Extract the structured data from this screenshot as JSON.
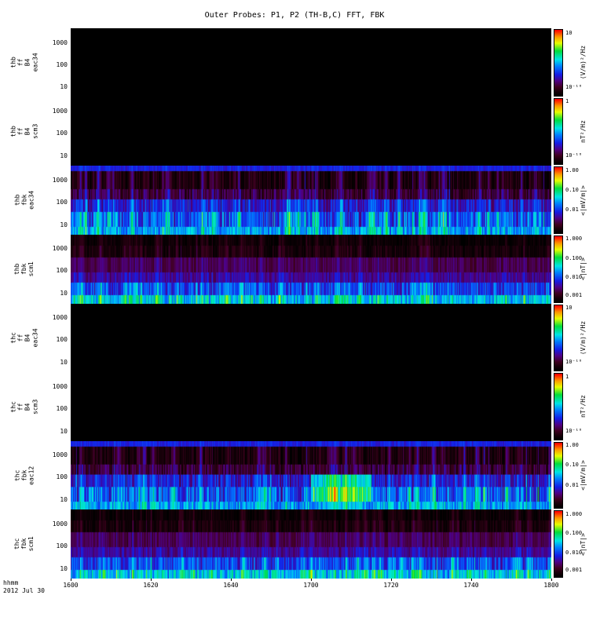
{
  "title": "Outer Probes: P1, P2 (TH-B,C) FFT, FBK",
  "footer": {
    "time_label": "hhmm",
    "date_label": "2012 Jul 30"
  },
  "colors": {
    "background": "#ffffff",
    "panel_background": "#000000",
    "axis": "#000000"
  },
  "chart_data": {
    "type": "heatmap",
    "title": "Outer Probes: P1, P2 (TH-B,C) FFT, FBK",
    "xlabel": "hhmm",
    "x_range": [
      "1600",
      "1800"
    ],
    "x_ticks": [
      "1600",
      "1620",
      "1640",
      "1700",
      "1720",
      "1740",
      "1800"
    ],
    "y_scale": "log",
    "y_ticks": [
      {
        "pos": 0.2,
        "label": "1000"
      },
      {
        "pos": 0.52,
        "label": "100"
      },
      {
        "pos": 0.85,
        "label": "10"
      }
    ],
    "row_profiles": {
      "efield": [
        {
          "frac": 0.09,
          "base": 0.3,
          "gain": 0.06,
          "noise": 0.04
        },
        {
          "frac": 0.26,
          "base": 0.0,
          "gain": 0.3,
          "noise": 0.05
        },
        {
          "frac": 0.14,
          "base": 0.1,
          "gain": 0.2,
          "noise": 0.09
        },
        {
          "frac": 0.19,
          "base": 0.24,
          "gain": 0.25,
          "noise": 0.1
        },
        {
          "frac": 0.21,
          "base": 0.3,
          "gain": 0.4,
          "noise": 0.13
        },
        {
          "frac": 0.11,
          "base": 0.42,
          "gain": 0.25,
          "noise": 0.11
        }
      ],
      "bfield": [
        {
          "frac": 0.17,
          "base": 0.0,
          "gain": 0.12,
          "noise": 0.03
        },
        {
          "frac": 0.17,
          "base": 0.02,
          "gain": 0.14,
          "noise": 0.04
        },
        {
          "frac": 0.21,
          "base": 0.15,
          "gain": 0.1,
          "noise": 0.05
        },
        {
          "frac": 0.15,
          "base": 0.21,
          "gain": 0.12,
          "noise": 0.06
        },
        {
          "frac": 0.18,
          "base": 0.3,
          "gain": 0.25,
          "noise": 0.11
        },
        {
          "frac": 0.12,
          "base": 0.45,
          "gain": 0.28,
          "noise": 0.12
        }
      ]
    },
    "panels": [
      {
        "id": "thb-ff-b4-eac34",
        "label_lines": [
          "thb",
          "ff",
          "B4",
          "eac34"
        ],
        "kind": "empty",
        "colorbar": {
          "unit": "(V/m)²/Hz",
          "ticks": [
            {
              "pos": 0.02,
              "label": "10"
            },
            {
              "pos": 0.9,
              "label": "10⁻¹⁰"
            }
          ]
        }
      },
      {
        "id": "thb-ff-b4-scm3",
        "label_lines": [
          "thb",
          "ff",
          "B4",
          "scm3"
        ],
        "kind": "empty",
        "colorbar": {
          "unit": "nT²/Hz",
          "ticks": [
            {
              "pos": 0.02,
              "label": "1"
            },
            {
              "pos": 0.9,
              "label": "10⁻¹⁰"
            }
          ]
        }
      },
      {
        "id": "thb-fbk-eac34",
        "label_lines": [
          "thb",
          "fbk",
          "eac34"
        ],
        "kind": "spectrogram",
        "profile": "efield",
        "seed": 101,
        "colorbar": {
          "unit": "<|mV/m|>",
          "ticks": [
            {
              "pos": 0.02,
              "label": "1.00"
            },
            {
              "pos": 0.34,
              "label": "0.10"
            },
            {
              "pos": 0.66,
              "label": "0.01"
            }
          ]
        }
      },
      {
        "id": "thb-fbk-scm1",
        "label_lines": [
          "thb",
          "fbk",
          "scm1"
        ],
        "kind": "spectrogram",
        "profile": "bfield",
        "seed": 202,
        "colorbar": {
          "unit": "<|nT|>",
          "ticks": [
            {
              "pos": 0.02,
              "label": "1.000"
            },
            {
              "pos": 0.33,
              "label": "0.100"
            },
            {
              "pos": 0.64,
              "label": "0.010"
            },
            {
              "pos": 0.93,
              "label": "0.001"
            }
          ]
        }
      },
      {
        "id": "thc-ff-b4-eac34",
        "label_lines": [
          "thc",
          "ff",
          "B4",
          "eac34"
        ],
        "kind": "empty",
        "colorbar": {
          "unit": "(V/m)²/Hz",
          "ticks": [
            {
              "pos": 0.02,
              "label": "10"
            },
            {
              "pos": 0.9,
              "label": "10⁻¹⁰"
            }
          ]
        }
      },
      {
        "id": "thc-ff-b4-scm3",
        "label_lines": [
          "thc",
          "ff",
          "B4",
          "scm3"
        ],
        "kind": "empty",
        "colorbar": {
          "unit": "nT²/Hz",
          "ticks": [
            {
              "pos": 0.02,
              "label": "1"
            },
            {
              "pos": 0.9,
              "label": "10⁻¹⁰"
            }
          ]
        }
      },
      {
        "id": "thc-fbk-eac12",
        "label_lines": [
          "thc",
          "fbk",
          "eac12"
        ],
        "kind": "spectrogram",
        "profile": "efield",
        "seed": 303,
        "hotspot": {
          "from": 0.5,
          "to": 0.625,
          "rows": [
            3,
            4
          ],
          "boost": 0.25
        },
        "colorbar": {
          "unit": "<|mV/m|>",
          "ticks": [
            {
              "pos": 0.02,
              "label": "1.00"
            },
            {
              "pos": 0.34,
              "label": "0.10"
            },
            {
              "pos": 0.66,
              "label": "0.01"
            }
          ]
        }
      },
      {
        "id": "thc-fbk-scm1",
        "label_lines": [
          "thc",
          "fbk",
          "scm1"
        ],
        "kind": "spectrogram",
        "profile": "bfield",
        "seed": 404,
        "colorbar": {
          "unit": "<|nT|>",
          "ticks": [
            {
              "pos": 0.02,
              "label": "1.000"
            },
            {
              "pos": 0.33,
              "label": "0.100"
            },
            {
              "pos": 0.64,
              "label": "0.010"
            },
            {
              "pos": 0.93,
              "label": "0.001"
            }
          ]
        }
      }
    ],
    "colormap_stops": [
      [
        0.0,
        [
          0,
          0,
          0
        ]
      ],
      [
        0.06,
        [
          25,
          0,
          10
        ]
      ],
      [
        0.13,
        [
          64,
          0,
          32
        ]
      ],
      [
        0.22,
        [
          80,
          0,
          130
        ]
      ],
      [
        0.32,
        [
          20,
          30,
          230
        ]
      ],
      [
        0.45,
        [
          0,
          130,
          255
        ]
      ],
      [
        0.55,
        [
          0,
          230,
          230
        ]
      ],
      [
        0.68,
        [
          0,
          220,
          60
        ]
      ],
      [
        0.8,
        [
          230,
          255,
          0
        ]
      ],
      [
        0.9,
        [
          255,
          150,
          0
        ]
      ],
      [
        1.0,
        [
          255,
          0,
          0
        ]
      ]
    ]
  }
}
